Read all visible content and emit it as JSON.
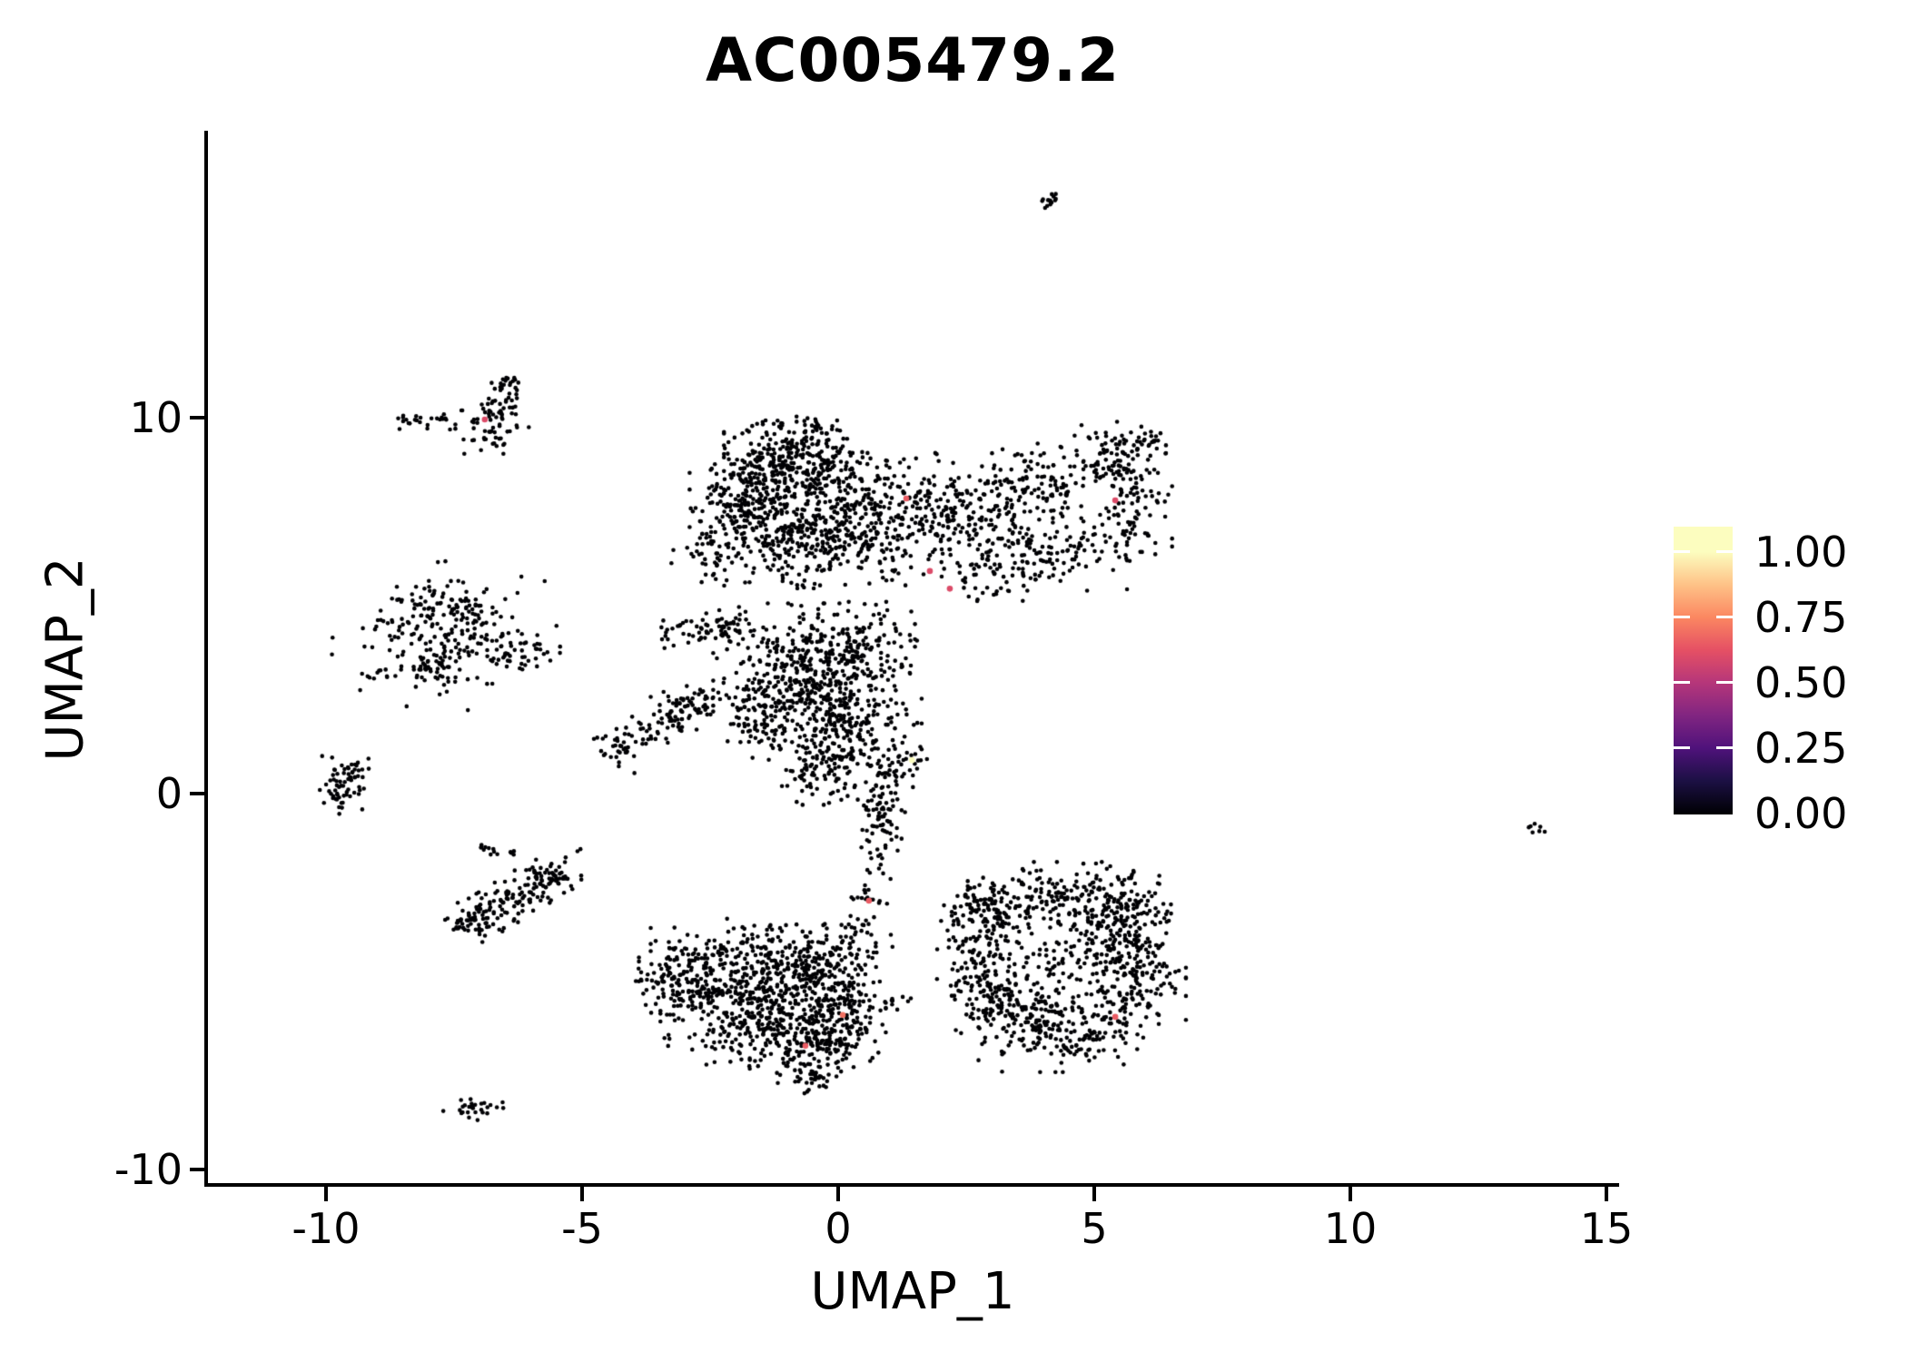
{
  "chart_data": {
    "type": "scatter",
    "title": "AC005479.2",
    "xlabel": "UMAP_1",
    "ylabel": "UMAP_2",
    "x_tick_labels": [
      "-10",
      "-5",
      "0",
      "5",
      "10",
      "15"
    ],
    "x_tick_values": [
      -10,
      -5,
      0,
      5,
      10,
      15
    ],
    "y_tick_labels": [
      "10",
      "0",
      "-10"
    ],
    "y_tick_values": [
      10,
      0,
      -10
    ],
    "xlim": [
      -12.3,
      15.2
    ],
    "ylim": [
      -10.4,
      17.6
    ],
    "grid": false,
    "background": "#FFFFFF",
    "point_color": "#000004",
    "legend": {
      "position": "right",
      "colormap": "magma",
      "tick_labels": [
        "1.00",
        "0.75",
        "0.50",
        "0.25",
        "0.00"
      ],
      "tick_values": [
        1.0,
        0.75,
        0.5,
        0.25,
        0.0
      ],
      "stops": [
        [
          0.0,
          "#000004"
        ],
        [
          0.125,
          "#1C1044"
        ],
        [
          0.25,
          "#4F127B"
        ],
        [
          0.375,
          "#812581"
        ],
        [
          0.5,
          "#B5367A"
        ],
        [
          0.625,
          "#E55064"
        ],
        [
          0.75,
          "#FB8761"
        ],
        [
          0.875,
          "#FEC287"
        ],
        [
          1.0,
          "#FCFDBF"
        ]
      ]
    },
    "clusters": [
      [
        4.05,
        15.72,
        0.1,
        0.1,
        9
      ],
      [
        4.22,
        15.9,
        0.07,
        0.07,
        5
      ],
      [
        -6.6,
        10.4,
        0.25,
        0.3,
        35
      ],
      [
        -6.7,
        9.7,
        0.3,
        0.3,
        40
      ],
      [
        -7.6,
        9.95,
        0.45,
        0.12,
        25
      ],
      [
        -8.3,
        9.9,
        0.12,
        0.1,
        8
      ],
      [
        -6.4,
        10.9,
        0.15,
        0.2,
        12
      ],
      [
        -8.4,
        4.4,
        0.4,
        0.5,
        60
      ],
      [
        -7.6,
        5.0,
        0.5,
        0.3,
        55
      ],
      [
        -7.0,
        4.2,
        0.4,
        0.45,
        55
      ],
      [
        -7.8,
        3.5,
        0.5,
        0.3,
        50
      ],
      [
        -6.4,
        3.7,
        0.45,
        0.3,
        45
      ],
      [
        -8.9,
        3.2,
        0.18,
        0.12,
        10
      ],
      [
        -7.7,
        4.2,
        1.0,
        0.9,
        45
      ],
      [
        -5.9,
        3.9,
        0.08,
        0.08,
        3
      ],
      [
        -9.65,
        0.35,
        0.22,
        0.35,
        45
      ],
      [
        -9.75,
        -0.15,
        0.14,
        0.18,
        15
      ],
      [
        -9.4,
        0.7,
        0.15,
        0.12,
        10
      ],
      [
        -7.1,
        -3.4,
        0.3,
        0.25,
        30
      ],
      [
        -5.55,
        -2.1,
        0.25,
        0.2,
        20
      ],
      [
        -6.8,
        -1.5,
        0.15,
        0.1,
        10
      ],
      [
        -6.35,
        -1.6,
        0.08,
        0.06,
        4
      ],
      [
        -5.1,
        -1.5,
        0.05,
        0.05,
        2
      ],
      [
        -6.0,
        -2.6,
        0.4,
        0.15,
        10
      ],
      [
        -7.05,
        -8.4,
        0.3,
        0.13,
        30
      ],
      [
        -0.8,
        8.8,
        0.65,
        0.5,
        300
      ],
      [
        -1.8,
        7.6,
        0.5,
        0.55,
        180
      ],
      [
        -0.7,
        7.0,
        0.8,
        0.7,
        280
      ],
      [
        0.8,
        7.3,
        0.8,
        0.8,
        300
      ],
      [
        5.3,
        8.9,
        0.5,
        0.45,
        120
      ],
      [
        4.1,
        6.5,
        0.7,
        0.5,
        130
      ],
      [
        5.75,
        7.4,
        0.35,
        0.55,
        70
      ],
      [
        3.0,
        6.0,
        0.6,
        0.4,
        60
      ],
      [
        -2.5,
        6.3,
        0.35,
        0.35,
        45
      ],
      [
        -0.9,
        9.7,
        0.4,
        0.2,
        40
      ],
      [
        -3.0,
        2.2,
        0.3,
        0.3,
        30
      ],
      [
        -0.9,
        3.3,
        0.7,
        0.8,
        300
      ],
      [
        0.2,
        2.2,
        0.65,
        0.85,
        270
      ],
      [
        -1.5,
        2.0,
        0.35,
        0.5,
        80
      ],
      [
        0.4,
        4.0,
        0.5,
        0.5,
        110
      ],
      [
        -0.3,
        0.8,
        0.5,
        0.5,
        110
      ],
      [
        0.8,
        0.1,
        0.3,
        0.5,
        60
      ],
      [
        1.3,
        1.0,
        0.3,
        0.4,
        25
      ],
      [
        -1.6,
        -5.6,
        0.85,
        0.75,
        400
      ],
      [
        -2.9,
        -5.0,
        0.45,
        0.4,
        120
      ],
      [
        -0.7,
        -4.6,
        0.7,
        0.5,
        170
      ],
      [
        -0.6,
        -6.6,
        0.6,
        0.5,
        200
      ],
      [
        0.05,
        -5.6,
        0.4,
        0.6,
        140
      ],
      [
        -1.9,
        -4.1,
        0.8,
        0.35,
        70
      ],
      [
        -3.4,
        -4.9,
        0.25,
        0.2,
        25
      ],
      [
        0.4,
        -3.9,
        0.3,
        0.45,
        40
      ],
      [
        4.4,
        -2.7,
        0.85,
        0.4,
        160
      ],
      [
        3.1,
        -3.3,
        0.4,
        0.45,
        90
      ],
      [
        5.4,
        -3.4,
        0.5,
        0.5,
        130
      ],
      [
        5.8,
        -4.7,
        0.45,
        0.6,
        160
      ],
      [
        4.5,
        -6.2,
        0.8,
        0.55,
        210
      ],
      [
        3.3,
        -5.6,
        0.5,
        0.5,
        130
      ],
      [
        2.7,
        -4.5,
        0.35,
        0.55,
        90
      ],
      [
        4.3,
        -4.5,
        0.7,
        0.6,
        80
      ],
      [
        6.35,
        -3.0,
        0.2,
        0.3,
        12
      ],
      [
        1.2,
        -5.6,
        0.22,
        0.12,
        10
      ]
    ],
    "strips": [
      [
        -7.45,
        -3.7,
        -5.4,
        -2.0,
        0.25,
        140
      ],
      [
        1.6,
        7.0,
        4.4,
        8.4,
        0.55,
        230
      ],
      [
        5.8,
        9.2,
        6.15,
        9.6,
        0.15,
        20
      ],
      [
        -3.5,
        4.2,
        -1.7,
        4.6,
        0.2,
        70
      ],
      [
        -4.5,
        0.9,
        -2.6,
        2.8,
        0.3,
        100
      ],
      [
        0.95,
        -0.4,
        0.6,
        -2.9,
        0.18,
        65
      ],
      [
        -0.5,
        -7.3,
        -0.3,
        -7.85,
        0.25,
        25
      ],
      [
        2.2,
        -3.3,
        3.0,
        -2.8,
        0.2,
        40
      ],
      [
        13.45,
        -0.75,
        13.78,
        -1.1,
        0.07,
        7
      ]
    ],
    "highlighted_points": [
      [
        -6.9,
        9.95,
        0.6
      ],
      [
        1.33,
        7.85,
        0.65
      ],
      [
        5.41,
        7.8,
        0.6
      ],
      [
        1.79,
        5.92,
        0.6
      ],
      [
        2.18,
        5.45,
        0.6
      ],
      [
        1.44,
        0.89,
        1.0
      ],
      [
        0.6,
        -2.85,
        0.65
      ],
      [
        0.09,
        -5.89,
        0.7
      ],
      [
        -0.64,
        -6.71,
        0.65
      ],
      [
        5.41,
        -5.94,
        0.65
      ]
    ]
  }
}
